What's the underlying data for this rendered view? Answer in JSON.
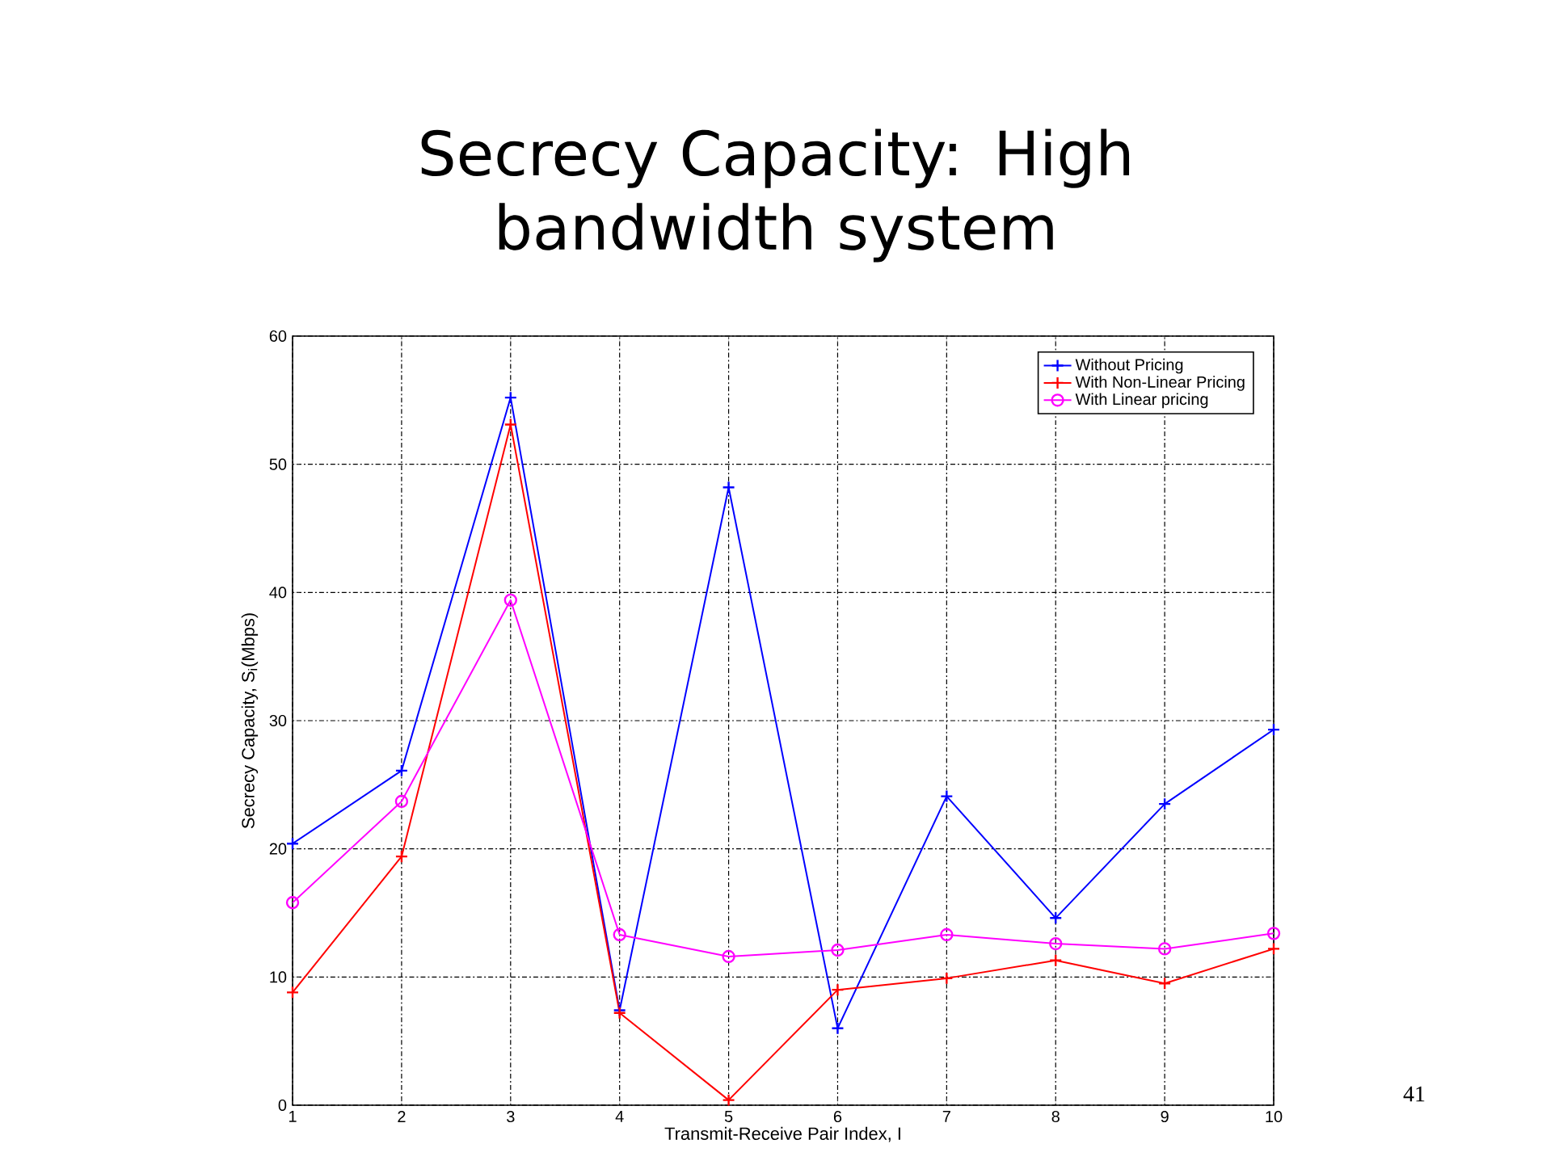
{
  "chart_data": {
    "type": "line",
    "title": "Secrecy Capacity: High bandwidth system",
    "xlabel": "Transmit-Receive Pair Index, I",
    "ylabel": "Secrecy Capacity, S$_{i}$(Mbps)",
    "x": [
      1,
      2,
      3,
      4,
      5,
      6,
      7,
      8,
      9,
      10
    ],
    "series": [
      {
        "name": "Without Pricing",
        "color": "#0000ff",
        "marker": "cross",
        "values": [
          20.4,
          26.1,
          55.2,
          7.4,
          48.2,
          6.0,
          24.1,
          14.6,
          23.5,
          29.3
        ]
      },
      {
        "name": "With Non-Linear Pricing",
        "color": "#ff0000",
        "marker": "cross",
        "values": [
          8.8,
          19.4,
          53.1,
          7.2,
          0.4,
          9.0,
          9.9,
          11.3,
          9.5,
          12.2
        ]
      },
      {
        "name": "With Linear pricing",
        "color": "#ff00ff",
        "marker": "circle",
        "values": [
          15.8,
          23.7,
          39.4,
          13.3,
          11.6,
          12.1,
          13.3,
          12.6,
          12.2,
          13.4
        ]
      }
    ],
    "xlim": [
      1,
      10
    ],
    "xticks": [
      1,
      2,
      3,
      4,
      5,
      6,
      7,
      8,
      9,
      10
    ],
    "ylim": [
      0,
      60
    ],
    "yticks": [
      0,
      10,
      20,
      30,
      40,
      50,
      60
    ],
    "grid": true,
    "legend": "top right",
    "annotations": [
      "41"
    ]
  }
}
